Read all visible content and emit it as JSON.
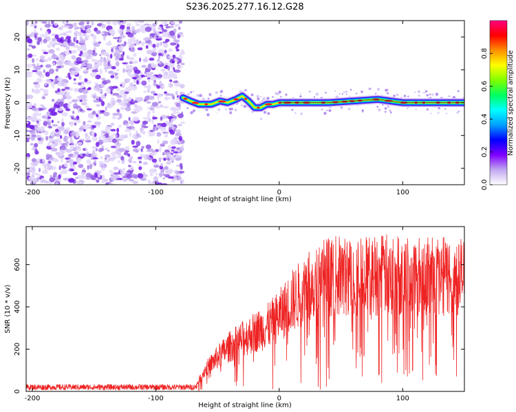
{
  "title": "S236.2025.277.16.12.G28",
  "chart_data": [
    {
      "type": "heatmap",
      "name": "spectrogram",
      "xlabel": "Height of straight line (km)",
      "ylabel": "Frequency (Hz)",
      "xlim": [
        -205,
        150
      ],
      "ylim": [
        -25,
        25
      ],
      "x_ticks": [
        -200,
        -100,
        0,
        100
      ],
      "x_tick_labels": [
        "-200",
        "-100",
        "0",
        "100"
      ],
      "y_ticks": [
        -20,
        -10,
        0,
        10,
        20
      ],
      "y_tick_labels": [
        "-20",
        "-10",
        "0",
        "10",
        "20"
      ],
      "noise_region_x": [
        -205,
        -78
      ],
      "signal_track": {
        "x": [
          -78,
          -72,
          -65,
          -55,
          -48,
          -42,
          -35,
          -30,
          -25,
          -20,
          -15,
          -10,
          -5,
          0,
          20,
          40,
          60,
          80,
          100,
          120,
          150
        ],
        "freq": [
          1.5,
          0.5,
          -0.5,
          -0.5,
          0.5,
          0.0,
          1.0,
          2.0,
          0.5,
          -1.5,
          -1.5,
          -0.5,
          -0.5,
          0.0,
          0.0,
          0.0,
          0.5,
          1.0,
          0.0,
          0.0,
          0.0
        ]
      },
      "colorbar": {
        "label": "Normalized spectral amplitude",
        "range": [
          0,
          1
        ],
        "ticks": [
          0.0,
          0.2,
          0.4,
          0.6,
          0.8
        ],
        "tick_labels": [
          "0.0",
          "0.2",
          "0.4",
          "0.6",
          "0.8"
        ],
        "colors": [
          "#ffffff",
          "#c0a8f0",
          "#7f00ff",
          "#0000ff",
          "#00a0ff",
          "#00ffff",
          "#00ff60",
          "#80ff00",
          "#ffff00",
          "#ff9000",
          "#ff0000",
          "#ff0080"
        ]
      }
    },
    {
      "type": "line",
      "name": "snr",
      "xlabel": "Height of straight line (km)",
      "ylabel": "SNR (10 * v/v)",
      "xlim": [
        -205,
        150
      ],
      "ylim": [
        0,
        780
      ],
      "x_ticks": [
        -200,
        -100,
        0,
        100
      ],
      "x_tick_labels": [
        "-200",
        "-100",
        "0",
        "100"
      ],
      "y_ticks": [
        0,
        200,
        400,
        600
      ],
      "y_tick_labels": [
        "0",
        "200",
        "400",
        "600"
      ],
      "series": [
        {
          "name": "SNR",
          "color": "#ee2222",
          "envelope_x": [
            -205,
            -68,
            -66,
            -60,
            -50,
            -40,
            -30,
            -20,
            -10,
            0,
            10,
            20,
            30,
            40,
            60,
            80,
            100,
            120,
            150
          ],
          "envelope_y": [
            20,
            20,
            50,
            120,
            190,
            250,
            290,
            330,
            360,
            420,
            500,
            560,
            620,
            640,
            640,
            650,
            650,
            640,
            640
          ]
        }
      ]
    }
  ]
}
